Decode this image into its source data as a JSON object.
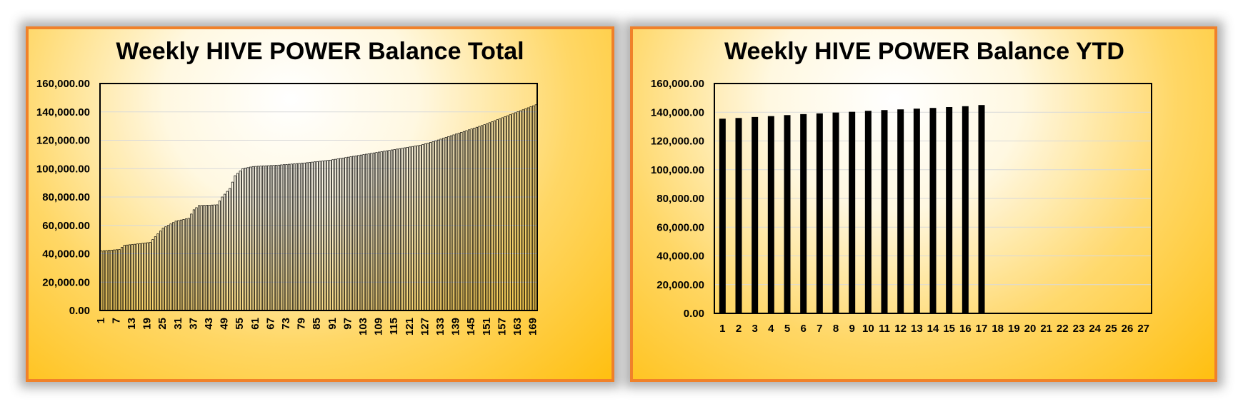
{
  "chart_data": [
    {
      "type": "bar",
      "title": "Weekly HIVE POWER Balance Total",
      "xlabel": "",
      "ylabel": "",
      "ylim": [
        0,
        160000
      ],
      "yticks": [
        "0.00",
        "20,000.00",
        "40,000.00",
        "60,000.00",
        "80,000.00",
        "100,000.00",
        "120,000.00",
        "140,000.00",
        "160,000.00"
      ],
      "xtick_labels": [
        "1",
        "7",
        "13",
        "19",
        "25",
        "31",
        "37",
        "43",
        "49",
        "55",
        "61",
        "67",
        "73",
        "79",
        "85",
        "91",
        "97",
        "103",
        "109",
        "115",
        "121",
        "127",
        "133",
        "139",
        "145",
        "151",
        "157",
        "163",
        "169"
      ],
      "num_weeks": 170,
      "anchors": [
        [
          1,
          42000
        ],
        [
          8,
          43000
        ],
        [
          10,
          46000
        ],
        [
          13,
          46500
        ],
        [
          20,
          48000
        ],
        [
          25,
          58000
        ],
        [
          30,
          63000
        ],
        [
          35,
          65000
        ],
        [
          37,
          71000
        ],
        [
          39,
          74000
        ],
        [
          46,
          74500
        ],
        [
          48,
          80000
        ],
        [
          51,
          86000
        ],
        [
          53,
          95000
        ],
        [
          56,
          100000
        ],
        [
          60,
          101500
        ],
        [
          70,
          102500
        ],
        [
          80,
          104000
        ],
        [
          90,
          106000
        ],
        [
          100,
          109000
        ],
        [
          110,
          112000
        ],
        [
          120,
          115000
        ],
        [
          125,
          116500
        ],
        [
          130,
          119000
        ],
        [
          140,
          125000
        ],
        [
          150,
          131000
        ],
        [
          160,
          138000
        ],
        [
          170,
          145000
        ]
      ],
      "grid": true,
      "legend": "none"
    },
    {
      "type": "bar",
      "title": "Weekly HIVE POWER Balance YTD",
      "xlabel": "",
      "ylabel": "",
      "ylim": [
        0,
        160000
      ],
      "yticks": [
        "0.00",
        "20,000.00",
        "40,000.00",
        "60,000.00",
        "80,000.00",
        "100,000.00",
        "120,000.00",
        "140,000.00",
        "160,000.00"
      ],
      "categories": [
        "1",
        "2",
        "3",
        "4",
        "5",
        "6",
        "7",
        "8",
        "9",
        "10",
        "11",
        "12",
        "13",
        "14",
        "15",
        "16",
        "17",
        "18",
        "19",
        "20",
        "21",
        "22",
        "23",
        "24",
        "25",
        "26",
        "27"
      ],
      "values": [
        135500,
        136000,
        136700,
        137300,
        138000,
        138700,
        139200,
        139800,
        140300,
        141000,
        141500,
        142000,
        142500,
        143000,
        143600,
        144200,
        145000,
        null,
        null,
        null,
        null,
        null,
        null,
        null,
        null,
        null,
        null
      ],
      "grid": true,
      "legend": "none"
    }
  ]
}
